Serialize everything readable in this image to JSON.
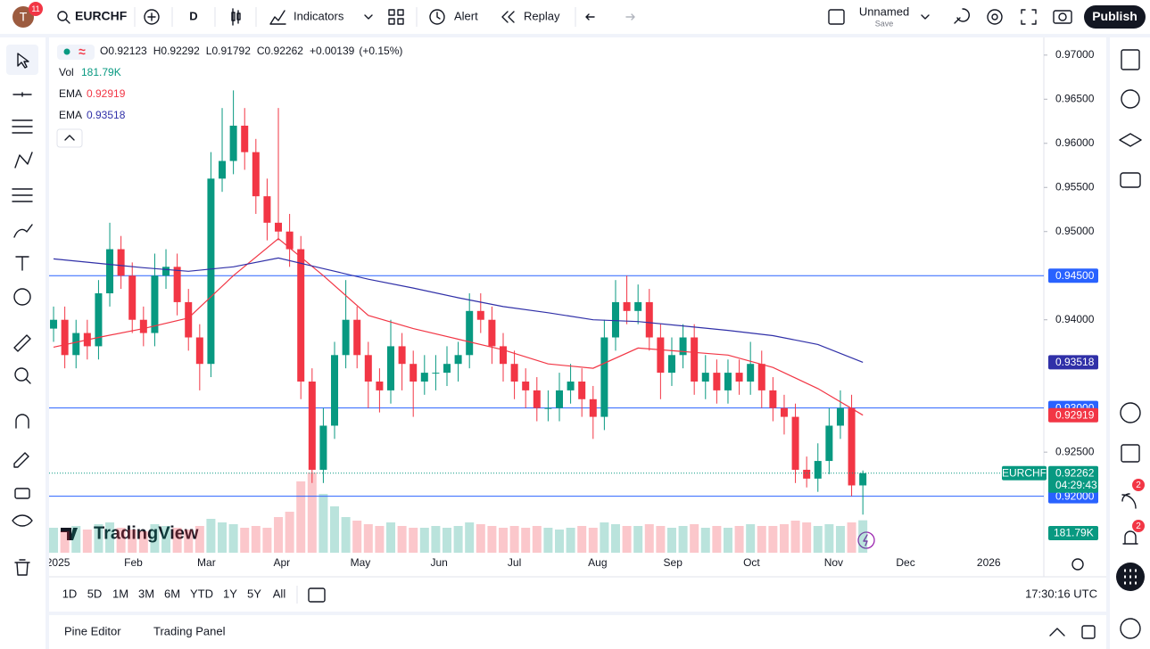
{
  "toolbar": {
    "avatar": "T",
    "avatar_badge": "11",
    "symbol": "EURCHF",
    "interval": "D",
    "indicators": "Indicators",
    "alert": "Alert",
    "replay": "Replay",
    "layout_name": "Unnamed",
    "layout_save": "Save",
    "publish": "Publish"
  },
  "chart_data": {
    "type": "candlestick",
    "ohlc_labels": [
      "O",
      "H",
      "L",
      "C"
    ],
    "change": "+0.00139",
    "change_pct": "(+0.15%)",
    "up_color": "#089981",
    "down_color": "#f23645",
    "open": [
      0.939,
      0.94,
      0.936,
      0.9385,
      0.937,
      0.943,
      0.948,
      0.945,
      0.94,
      0.9385,
      0.945,
      0.946,
      0.942,
      0.938,
      0.935,
      0.956,
      0.958,
      0.962,
      0.959,
      0.954,
      0.951,
      0.95,
      0.948,
      0.933,
      0.923,
      0.928,
      0.936,
      0.94,
      0.936,
      0.933,
      0.932,
      0.937,
      0.935,
      0.933,
      0.934,
      0.934,
      0.935,
      0.936,
      0.941,
      0.94,
      0.937,
      0.935,
      0.933,
      0.932,
      0.93,
      0.93,
      0.932,
      0.933,
      0.931,
      0.929,
      0.938,
      0.942,
      0.941,
      0.942,
      0.938,
      0.934,
      0.936,
      0.938,
      0.933,
      0.934,
      0.932,
      0.934,
      0.933,
      0.935,
      0.932,
      0.93,
      0.929,
      0.923,
      0.922,
      0.924,
      0.928,
      0.93,
      0.92123
    ],
    "high": [
      0.9415,
      0.9415,
      0.94,
      0.94,
      0.9445,
      0.951,
      0.9495,
      0.9465,
      0.9415,
      0.9475,
      0.948,
      0.9475,
      0.9435,
      0.9395,
      0.959,
      0.964,
      0.966,
      0.964,
      0.9605,
      0.956,
      0.964,
      0.952,
      0.9495,
      0.9345,
      0.93,
      0.9375,
      0.9445,
      0.9415,
      0.9375,
      0.9345,
      0.94,
      0.9385,
      0.9365,
      0.936,
      0.936,
      0.937,
      0.9375,
      0.943,
      0.943,
      0.9415,
      0.9385,
      0.9365,
      0.9345,
      0.9335,
      0.932,
      0.934,
      0.935,
      0.9345,
      0.9325,
      0.94,
      0.9445,
      0.945,
      0.944,
      0.9435,
      0.9395,
      0.938,
      0.9395,
      0.9395,
      0.936,
      0.9355,
      0.9355,
      0.9355,
      0.9375,
      0.9365,
      0.9335,
      0.9315,
      0.9305,
      0.9245,
      0.926,
      0.93,
      0.932,
      0.9315,
      0.92292
    ],
    "low": [
      0.9375,
      0.9345,
      0.9345,
      0.9355,
      0.9355,
      0.9415,
      0.9435,
      0.9385,
      0.937,
      0.937,
      0.9435,
      0.9405,
      0.9365,
      0.932,
      0.9335,
      0.9545,
      0.9565,
      0.957,
      0.952,
      0.949,
      0.949,
      0.946,
      0.931,
      0.9215,
      0.9215,
      0.9265,
      0.9345,
      0.9345,
      0.93,
      0.9295,
      0.9305,
      0.932,
      0.929,
      0.9315,
      0.932,
      0.9325,
      0.933,
      0.9345,
      0.9385,
      0.935,
      0.933,
      0.931,
      0.93,
      0.9285,
      0.9285,
      0.9285,
      0.9305,
      0.929,
      0.9265,
      0.9275,
      0.9365,
      0.9395,
      0.9395,
      0.9365,
      0.931,
      0.9325,
      0.9345,
      0.9315,
      0.931,
      0.9305,
      0.9305,
      0.9315,
      0.9315,
      0.93,
      0.9285,
      0.927,
      0.9215,
      0.921,
      0.9205,
      0.9225,
      0.9265,
      0.92,
      0.91792
    ],
    "close": [
      0.94,
      0.936,
      0.9385,
      0.937,
      0.943,
      0.948,
      0.945,
      0.94,
      0.9385,
      0.945,
      0.946,
      0.942,
      0.938,
      0.935,
      0.956,
      0.958,
      0.962,
      0.959,
      0.954,
      0.951,
      0.95,
      0.948,
      0.933,
      0.923,
      0.928,
      0.936,
      0.94,
      0.936,
      0.933,
      0.932,
      0.937,
      0.935,
      0.933,
      0.934,
      0.934,
      0.935,
      0.936,
      0.941,
      0.94,
      0.937,
      0.935,
      0.933,
      0.932,
      0.93,
      0.93,
      0.932,
      0.933,
      0.931,
      0.929,
      0.938,
      0.942,
      0.941,
      0.942,
      0.938,
      0.934,
      0.936,
      0.938,
      0.933,
      0.934,
      0.932,
      0.934,
      0.933,
      0.935,
      0.932,
      0.93,
      0.929,
      0.923,
      0.922,
      0.924,
      0.928,
      0.93,
      0.92123,
      0.92262
    ],
    "volume": {
      "name": "Vol",
      "last_label": "181.79K",
      "values": [
        140,
        120,
        150,
        130,
        160,
        170,
        140,
        130,
        120,
        160,
        150,
        140,
        130,
        150,
        190,
        170,
        160,
        140,
        150,
        140,
        200,
        230,
        400,
        450,
        330,
        260,
        200,
        180,
        160,
        150,
        170,
        150,
        140,
        140,
        150,
        140,
        150,
        170,
        160,
        150,
        140,
        150,
        140,
        150,
        140,
        130,
        140,
        150,
        140,
        170,
        160,
        150,
        150,
        160,
        150,
        140,
        150,
        160,
        140,
        150,
        140,
        150,
        160,
        150,
        150,
        160,
        180,
        170,
        150,
        160,
        150,
        170,
        181.79
      ]
    },
    "ema": [
      {
        "name": "EMA",
        "color": "#f23645",
        "x": [
          0,
          4,
          8,
          12,
          16,
          20,
          24,
          28,
          32,
          36,
          40,
          44,
          48,
          52,
          56,
          60,
          64,
          68,
          72
        ],
        "values": [
          0.9369,
          0.938,
          0.939,
          0.9402,
          0.945,
          0.9492,
          0.945,
          0.9405,
          0.939,
          0.9378,
          0.9366,
          0.935,
          0.9345,
          0.9368,
          0.9364,
          0.936,
          0.9346,
          0.9322,
          0.92919
        ]
      },
      {
        "name": "EMA",
        "color": "#3030a8",
        "x": [
          0,
          4,
          8,
          12,
          16,
          20,
          24,
          28,
          32,
          36,
          40,
          44,
          48,
          52,
          56,
          60,
          64,
          68,
          72
        ],
        "values": [
          0.9469,
          0.9464,
          0.9459,
          0.9455,
          0.946,
          0.947,
          0.9458,
          0.9446,
          0.9436,
          0.9425,
          0.9415,
          0.9408,
          0.94,
          0.9398,
          0.9393,
          0.9388,
          0.9382,
          0.9372,
          0.93518
        ]
      }
    ],
    "hline_color": "#2962ff",
    "hlines": [
      {
        "value": 0.945,
        "label": "0.94500"
      },
      {
        "value": 0.93,
        "label": "0.93000"
      },
      {
        "value": 0.92,
        "label": "0.92000"
      }
    ],
    "symbol_badge": "EURCHF",
    "countdown": "04:29:43",
    "grid": false,
    "ylim": [
      0.9136,
      0.972
    ],
    "yticks": [
      {
        "value": 0.97,
        "label": "0.97000"
      },
      {
        "value": 0.965,
        "label": "0.96500"
      },
      {
        "value": 0.96,
        "label": "0.96000"
      },
      {
        "value": 0.955,
        "label": "0.95500"
      },
      {
        "value": 0.95,
        "label": "0.95000"
      },
      {
        "value": 0.94,
        "label": "0.94000"
      },
      {
        "value": 0.925,
        "label": "0.92500"
      }
    ],
    "xlim": [
      -0.4,
      88.1
    ],
    "xticks": [
      {
        "value": 0.4,
        "label": "2025"
      },
      {
        "value": 7.1,
        "label": "Feb"
      },
      {
        "value": 13.6,
        "label": "Mar"
      },
      {
        "value": 20.3,
        "label": "Apr"
      },
      {
        "value": 27.3,
        "label": "May"
      },
      {
        "value": 34.3,
        "label": "Jun"
      },
      {
        "value": 41.0,
        "label": "Jul"
      },
      {
        "value": 48.4,
        "label": "Aug"
      },
      {
        "value": 55.1,
        "label": "Sep"
      },
      {
        "value": 62.1,
        "label": "Oct"
      },
      {
        "value": 69.4,
        "label": "Nov"
      },
      {
        "value": 75.8,
        "label": "Dec"
      },
      {
        "value": 83.2,
        "label": "2026"
      }
    ],
    "watermark": "TradingView"
  },
  "range_bar": {
    "ranges": [
      "1D",
      "5D",
      "1M",
      "3M",
      "6M",
      "YTD",
      "1Y",
      "5Y",
      "All"
    ],
    "clock": "17:30:16 UTC"
  },
  "bottom_panel": {
    "tabs": [
      "Pine Editor",
      "Trading Panel"
    ]
  },
  "right_toolbar": {
    "badges": [
      "2",
      "2"
    ]
  }
}
